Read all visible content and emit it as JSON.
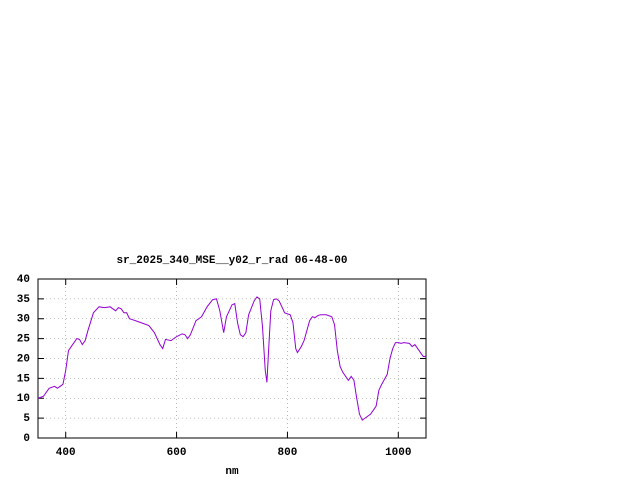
{
  "chart_data": {
    "type": "line",
    "title": "sr_2025_340_MSE__y02_r_rad 06-48-00",
    "x_label": "nm",
    "color": "#9400d3",
    "grid": true,
    "xlim": [
      350,
      1050
    ],
    "xticks": [
      400,
      600,
      800,
      1000
    ],
    "ylim": [
      0,
      40
    ],
    "yticks": [
      0,
      5,
      10,
      15,
      20,
      25,
      30,
      35,
      40
    ],
    "x": [
      350,
      360,
      370,
      380,
      385,
      390,
      395,
      400,
      405,
      410,
      420,
      425,
      430,
      435,
      440,
      450,
      460,
      470,
      480,
      490,
      495,
      500,
      505,
      510,
      515,
      520,
      530,
      540,
      550,
      560,
      570,
      575,
      580,
      590,
      600,
      610,
      615,
      620,
      625,
      635,
      645,
      655,
      665,
      672,
      678,
      685,
      690,
      700,
      705,
      710,
      715,
      720,
      725,
      730,
      740,
      745,
      750,
      755,
      760,
      763,
      766,
      770,
      775,
      780,
      785,
      790,
      795,
      805,
      810,
      815,
      818,
      825,
      830,
      840,
      845,
      850,
      855,
      860,
      870,
      880,
      885,
      890,
      895,
      900,
      910,
      915,
      920,
      925,
      930,
      935,
      940,
      950,
      960,
      965,
      970,
      980,
      985,
      990,
      995,
      1000,
      1005,
      1010,
      1020,
      1025,
      1030,
      1035,
      1040,
      1045,
      1050
    ],
    "values": [
      10,
      10.5,
      12.5,
      13,
      12.5,
      13,
      13.5,
      17,
      22,
      23,
      25,
      24.8,
      23.5,
      24.5,
      27,
      31.5,
      33,
      32.8,
      33,
      32,
      32.8,
      32.5,
      31.5,
      31.5,
      30,
      29.8,
      29.3,
      28.8,
      28.3,
      26.5,
      23.5,
      22.5,
      24.8,
      24.5,
      25.5,
      26.2,
      26,
      25,
      26,
      29.5,
      30.5,
      33,
      34.8,
      35,
      32,
      26.5,
      30.5,
      33.5,
      33.8,
      29,
      26,
      25.5,
      26.5,
      31,
      34.5,
      35.5,
      35,
      28,
      17,
      14,
      22,
      32,
      34.8,
      35,
      34.5,
      33,
      31.5,
      31,
      29,
      22.5,
      21.5,
      23,
      24.5,
      29.5,
      30.5,
      30.3,
      30.8,
      31,
      31,
      30.5,
      28.5,
      22,
      18,
      16.5,
      14.5,
      15.5,
      14.5,
      10,
      6,
      4.5,
      5,
      6,
      8,
      12,
      13.5,
      16,
      20,
      22.5,
      24,
      24,
      23.8,
      24,
      23.8,
      23,
      23.5,
      22.5,
      21.5,
      20.5,
      20.5
    ]
  }
}
